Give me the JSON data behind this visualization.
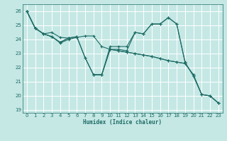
{
  "xlabel": "Humidex (Indice chaleur)",
  "bg_color": "#c5e8e5",
  "grid_color": "#ffffff",
  "line_color": "#1e6b65",
  "xlim": [
    -0.5,
    23.5
  ],
  "ylim": [
    18.8,
    26.5
  ],
  "yticks": [
    19,
    20,
    21,
    22,
    23,
    24,
    25,
    26
  ],
  "xticks": [
    0,
    1,
    2,
    3,
    4,
    5,
    6,
    7,
    8,
    9,
    10,
    11,
    12,
    13,
    14,
    15,
    16,
    17,
    18,
    19,
    20,
    21,
    22,
    23
  ],
  "series": [
    [
      26.0,
      24.8,
      24.4,
      24.5,
      24.15,
      24.1,
      null,
      null,
      21.5,
      21.5,
      23.5,
      23.5,
      23.5,
      24.5,
      24.4,
      25.1,
      25.1,
      25.55,
      25.1,
      22.4,
      null,
      null,
      null,
      null
    ],
    [
      26.0,
      24.8,
      24.4,
      24.2,
      23.8,
      24.1,
      24.2,
      22.7,
      21.5,
      21.5,
      23.3,
      23.2,
      23.1,
      23.0,
      22.9,
      22.8,
      22.65,
      22.5,
      22.4,
      22.3,
      21.5,
      20.1,
      20.0,
      19.5
    ],
    [
      26.0,
      24.8,
      24.4,
      24.2,
      23.75,
      24.0,
      24.15,
      24.25,
      24.25,
      23.5,
      23.3,
      23.3,
      23.2,
      24.5,
      24.4,
      25.1,
      25.1,
      25.55,
      25.1,
      22.4,
      21.4,
      20.1,
      20.0,
      19.5
    ],
    [
      26.0,
      24.8,
      24.4,
      24.2,
      23.8,
      24.1,
      24.2,
      22.7,
      21.5,
      21.5,
      23.3,
      23.2,
      23.1,
      23.0,
      22.9,
      22.8,
      22.65,
      22.5,
      22.4,
      22.3,
      21.5,
      20.1,
      20.0,
      19.5
    ]
  ]
}
